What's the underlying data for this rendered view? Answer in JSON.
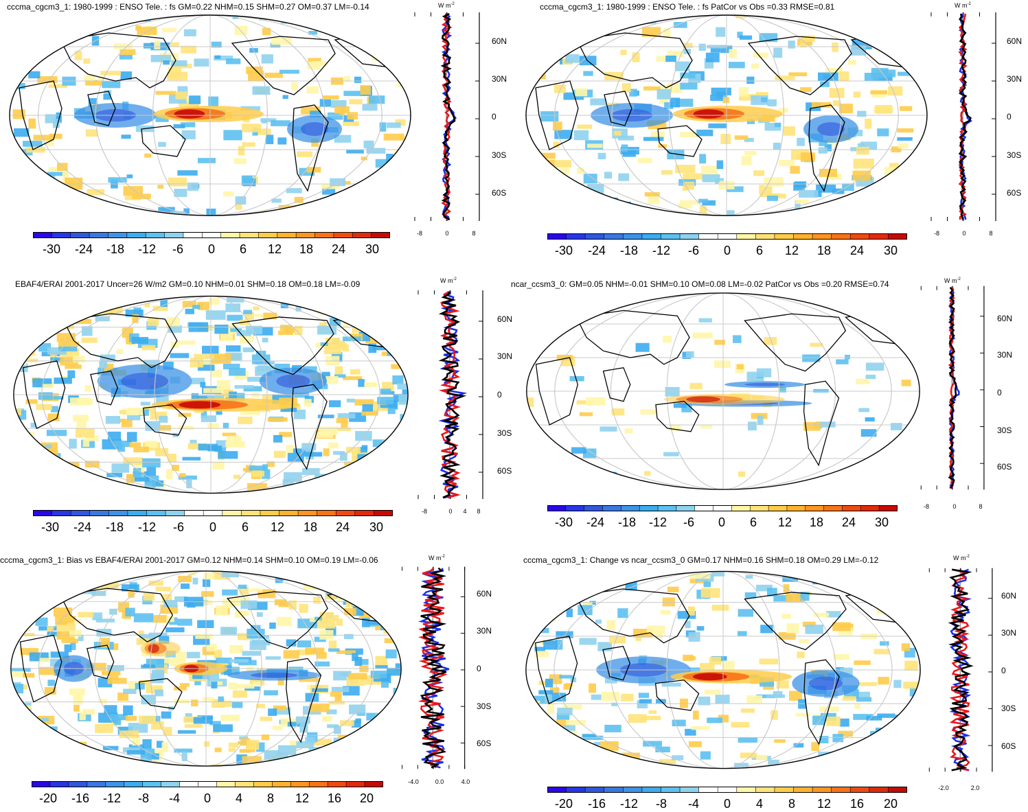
{
  "palette": [
    "#2a08e8",
    "#2836e6",
    "#3157dd",
    "#3a78e0",
    "#3f93e6",
    "#3cacef",
    "#5cc0f0",
    "#8fd2ee",
    "#ffffff",
    "#ffffff",
    "#fff6a8",
    "#ffe37a",
    "#ffcc4a",
    "#ffb22e",
    "#ff9520",
    "#f77318",
    "#ef4a12",
    "#e12a0c",
    "#c60a06"
  ],
  "panels": [
    {
      "id": "p1",
      "title": "cccma_cgcm3_1: 1980-1999 : ENSO Tele. : fs GM=0.22 NHM=0.15 SHM=0.27 OM=0.37 LM=-0.14",
      "unit": "W m",
      "unit_exp": "-2",
      "colorbar_labels": [
        "-30",
        "-24",
        "-18",
        "-12",
        "-6",
        "0",
        "6",
        "12",
        "18",
        "24",
        "30"
      ],
      "lat_labels": [
        "60N",
        "30N",
        "0",
        "30S",
        "60S"
      ],
      "x_ticks": [
        "-8",
        "0",
        "8"
      ]
    },
    {
      "id": "p2",
      "title": "cccma_cgcm3_1: 1980-1999 : ENSO Tele. : fs PatCor vs Obs =0.33 RMSE=0.81",
      "unit": "W m",
      "unit_exp": "-2",
      "colorbar_labels": [
        "-30",
        "-24",
        "-18",
        "-12",
        "-6",
        "0",
        "6",
        "12",
        "18",
        "24",
        "30"
      ],
      "lat_labels": [
        "60N",
        "30N",
        "0",
        "30S",
        "60S"
      ],
      "x_ticks": [
        "-8",
        "0",
        "8"
      ]
    },
    {
      "id": "p3",
      "title": "EBAF4/ERAI 2001-2017 Uncer=26 W/m2 GM=0.10 NHM=0.01 SHM=0.18 OM=0.18 LM=-0.09",
      "unit": "W m",
      "unit_exp": "-2",
      "colorbar_labels": [
        "-30",
        "-24",
        "-18",
        "-12",
        "-6",
        "0",
        "6",
        "12",
        "18",
        "24",
        "30"
      ],
      "lat_labels": [
        "60N",
        "30N",
        "0",
        "30S",
        "60S"
      ],
      "x_ticks": [
        "-8",
        "0",
        "4",
        "8"
      ]
    },
    {
      "id": "p4",
      "title": "ncar_ccsm3_0: GM=0.05 NHM=-0.01 SHM=0.10 OM=0.08 LM=-0.02 PatCor vs Obs =0.20 RMSE=0.74",
      "unit": "W m",
      "unit_exp": "-2",
      "colorbar_labels": [
        "-30",
        "-24",
        "-18",
        "-12",
        "-6",
        "0",
        "6",
        "12",
        "18",
        "24",
        "30"
      ],
      "lat_labels": [
        "60N",
        "30N",
        "0",
        "30S",
        "60S"
      ],
      "x_ticks": [
        "-8",
        "0",
        "8"
      ]
    },
    {
      "id": "p5",
      "title": "cccma_cgcm3_1: Bias vs EBAF4/ERAI 2001-2017 GM=0.12 NHM=0.14 SHM=0.10 OM=0.19 LM=-0.06",
      "unit": "W m",
      "unit_exp": "-2",
      "colorbar_labels": [
        "-20",
        "-16",
        "-12",
        "-8",
        "-4",
        "0",
        "4",
        "8",
        "12",
        "16",
        "20"
      ],
      "lat_labels": [
        "60N",
        "30N",
        "0",
        "30S",
        "60S"
      ],
      "x_ticks": [
        "-4.0",
        "0.0",
        "4.0"
      ]
    },
    {
      "id": "p6",
      "title": "cccma_cgcm3_1: Change vs ncar_ccsm3_0 GM=0.17 NHM=0.16 SHM=0.18 OM=0.29 LM=-0.12",
      "unit": "W m",
      "unit_exp": "-2",
      "colorbar_labels": [
        "-20",
        "-16",
        "-12",
        "-8",
        "-4",
        "0",
        "4",
        "8",
        "12",
        "16",
        "20"
      ],
      "lat_labels": [
        "60N",
        "30N",
        "0",
        "30S",
        "60S"
      ],
      "x_ticks": [
        "-2.0",
        "2.0"
      ]
    }
  ]
}
